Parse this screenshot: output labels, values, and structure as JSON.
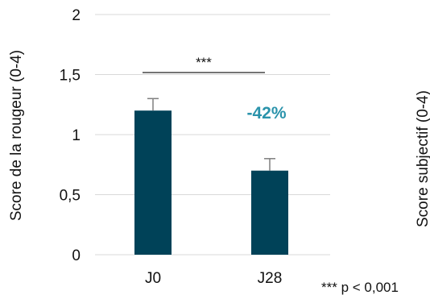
{
  "chart_data": [
    {
      "type": "bar",
      "categories": [
        "J0",
        "J28"
      ],
      "values": [
        1.2,
        0.7
      ],
      "error": [
        0.1,
        0.1
      ],
      "ylabel": "Score de la rougeur (0-4)",
      "ylim": [
        0,
        2
      ],
      "yticks": [
        0,
        0.5,
        1,
        1.5,
        2
      ],
      "ytick_labels": [
        "0",
        "0,5",
        "1",
        "1,5",
        "2"
      ],
      "grid": true,
      "bar_color": "#004258",
      "annotations": {
        "significance": "***",
        "change": "-42%"
      }
    },
    {
      "type": "bar",
      "ylabel": "Score subjectif (0-4)"
    }
  ],
  "footnote": "*** p < 0,001",
  "colors": {
    "bar": "#004258",
    "grid": "#d9d9d9",
    "accent": "#2a93ab",
    "error_bar": "#7f7f7f"
  }
}
